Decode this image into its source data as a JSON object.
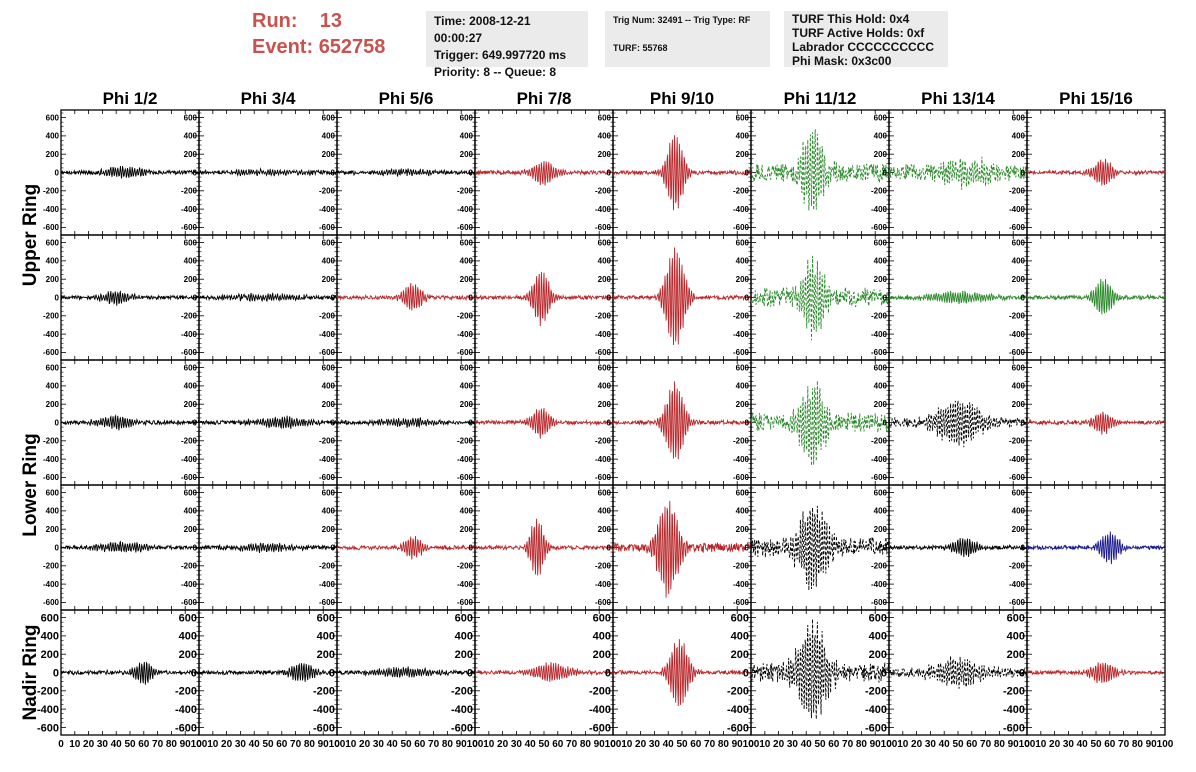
{
  "header": {
    "run_label": "Run:",
    "run_value": "13",
    "event_label": "Event:",
    "event_value": "652758",
    "time": "Time: 2008-12-21 00:00:27",
    "trigger": "Trigger: 649.997720 ms",
    "priority": "Priority: 8 -- Queue: 8",
    "trig_num": "Trig Num: 32491 -- Trig Type: RF",
    "turf": "TURF: 55768",
    "turf_hold": "TURF This Hold: 0x4",
    "turf_active": "TURF Active Holds: 0xf",
    "labrador": "Labrador CCCCCCCCCC",
    "phi_mask": "Phi Mask: 0x3c00"
  },
  "colors": {
    "black": "#000000",
    "red": "#b8262a",
    "green": "#2a8a2a",
    "blue": "#1a1a8c",
    "accent": "#c9524e",
    "box_bg": "#ebebeb"
  },
  "chart_data": {
    "type": "line",
    "columns": [
      "Phi 1/2",
      "Phi 3/4",
      "Phi 5/6",
      "Phi 7/8",
      "Phi 9/10",
      "Phi 11/12",
      "Phi 13/14",
      "Phi 15/16"
    ],
    "ring_labels": [
      "Upper Ring",
      "Lower Ring",
      "Nadir Ring"
    ],
    "xlim": [
      0,
      100
    ],
    "ylim": [
      -650,
      650
    ],
    "yticks": [
      -600,
      -400,
      -200,
      0,
      200,
      400,
      600
    ],
    "xticks": [
      0,
      10,
      20,
      30,
      40,
      50,
      60,
      70,
      80,
      90,
      100
    ],
    "xtick_labels": [
      "0",
      "10",
      "20",
      "30",
      "40",
      "50",
      "60",
      "70",
      "80",
      "90",
      "100"
    ],
    "rows": [
      [
        {
          "color": "black",
          "style": "solid",
          "peak": 60,
          "center": 45,
          "width": 15,
          "noise": 25
        },
        {
          "color": "black",
          "style": "solid",
          "peak": 25,
          "center": 50,
          "width": 30,
          "noise": 25
        },
        {
          "color": "black",
          "style": "solid",
          "peak": 30,
          "center": 50,
          "width": 25,
          "noise": 25
        },
        {
          "color": "red",
          "style": "solid",
          "peak": 130,
          "center": 50,
          "width": 10,
          "noise": 25
        },
        {
          "color": "red",
          "style": "solid",
          "peak": 430,
          "center": 45,
          "width": 7,
          "noise": 25
        },
        {
          "color": "green",
          "style": "dashed",
          "peak": 450,
          "center": 45,
          "width": 9,
          "noise": 120
        },
        {
          "color": "green",
          "style": "dashed",
          "peak": 130,
          "center": 55,
          "width": 20,
          "noise": 100
        },
        {
          "color": "red",
          "style": "solid",
          "peak": 150,
          "center": 55,
          "width": 8,
          "noise": 25
        }
      ],
      [
        {
          "color": "black",
          "style": "solid",
          "peak": 70,
          "center": 40,
          "width": 12,
          "noise": 25
        },
        {
          "color": "black",
          "style": "solid",
          "peak": 30,
          "center": 50,
          "width": 30,
          "noise": 25
        },
        {
          "color": "red",
          "style": "solid",
          "peak": 150,
          "center": 55,
          "width": 8,
          "noise": 25
        },
        {
          "color": "red",
          "style": "solid",
          "peak": 300,
          "center": 48,
          "width": 7,
          "noise": 25
        },
        {
          "color": "red",
          "style": "solid",
          "peak": 550,
          "center": 45,
          "width": 8,
          "noise": 25
        },
        {
          "color": "green",
          "style": "dashed",
          "peak": 400,
          "center": 45,
          "width": 10,
          "noise": 120
        },
        {
          "color": "green",
          "style": "solid",
          "peak": 60,
          "center": 50,
          "width": 25,
          "noise": 25
        },
        {
          "color": "green",
          "style": "solid",
          "peak": 200,
          "center": 55,
          "width": 8,
          "noise": 25
        }
      ],
      [
        {
          "color": "black",
          "style": "solid",
          "peak": 70,
          "center": 40,
          "width": 15,
          "noise": 25
        },
        {
          "color": "black",
          "style": "solid",
          "peak": 60,
          "center": 60,
          "width": 20,
          "noise": 25
        },
        {
          "color": "black",
          "style": "solid",
          "peak": 40,
          "center": 50,
          "width": 25,
          "noise": 25
        },
        {
          "color": "red",
          "style": "solid",
          "peak": 160,
          "center": 48,
          "width": 8,
          "noise": 25
        },
        {
          "color": "red",
          "style": "solid",
          "peak": 430,
          "center": 45,
          "width": 8,
          "noise": 25
        },
        {
          "color": "green",
          "style": "dashed",
          "peak": 450,
          "center": 45,
          "width": 10,
          "noise": 120
        },
        {
          "color": "black",
          "style": "dashed",
          "peak": 250,
          "center": 50,
          "width": 18,
          "noise": 60
        },
        {
          "color": "red",
          "style": "solid",
          "peak": 120,
          "center": 55,
          "width": 8,
          "noise": 25
        }
      ],
      [
        {
          "color": "black",
          "style": "solid",
          "peak": 50,
          "center": 45,
          "width": 20,
          "noise": 25
        },
        {
          "color": "black",
          "style": "solid",
          "peak": 40,
          "center": 50,
          "width": 25,
          "noise": 25
        },
        {
          "color": "red",
          "style": "solid",
          "peak": 120,
          "center": 55,
          "width": 8,
          "noise": 25
        },
        {
          "color": "red",
          "style": "solid",
          "peak": 330,
          "center": 45,
          "width": 6,
          "noise": 25
        },
        {
          "color": "red",
          "style": "solid",
          "peak": 520,
          "center": 40,
          "width": 9,
          "noise": 60
        },
        {
          "color": "black",
          "style": "dashed",
          "peak": 450,
          "center": 45,
          "width": 12,
          "noise": 120
        },
        {
          "color": "black",
          "style": "solid",
          "peak": 100,
          "center": 55,
          "width": 10,
          "noise": 25
        },
        {
          "color": "blue",
          "style": "solid",
          "peak": 170,
          "center": 60,
          "width": 8,
          "noise": 25
        }
      ],
      [
        {
          "color": "black",
          "style": "solid",
          "peak": 120,
          "center": 60,
          "width": 8,
          "noise": 25
        },
        {
          "color": "black",
          "style": "solid",
          "peak": 100,
          "center": 75,
          "width": 10,
          "noise": 25
        },
        {
          "color": "black",
          "style": "solid",
          "peak": 50,
          "center": 50,
          "width": 25,
          "noise": 25
        },
        {
          "color": "red",
          "style": "solid",
          "peak": 100,
          "center": 55,
          "width": 15,
          "noise": 25
        },
        {
          "color": "red",
          "style": "solid",
          "peak": 380,
          "center": 48,
          "width": 8,
          "noise": 25
        },
        {
          "color": "black",
          "style": "dashed",
          "peak": 550,
          "center": 45,
          "width": 12,
          "noise": 120
        },
        {
          "color": "black",
          "style": "dashed",
          "peak": 150,
          "center": 50,
          "width": 20,
          "noise": 60
        },
        {
          "color": "red",
          "style": "solid",
          "peak": 120,
          "center": 55,
          "width": 10,
          "noise": 25
        }
      ]
    ]
  }
}
